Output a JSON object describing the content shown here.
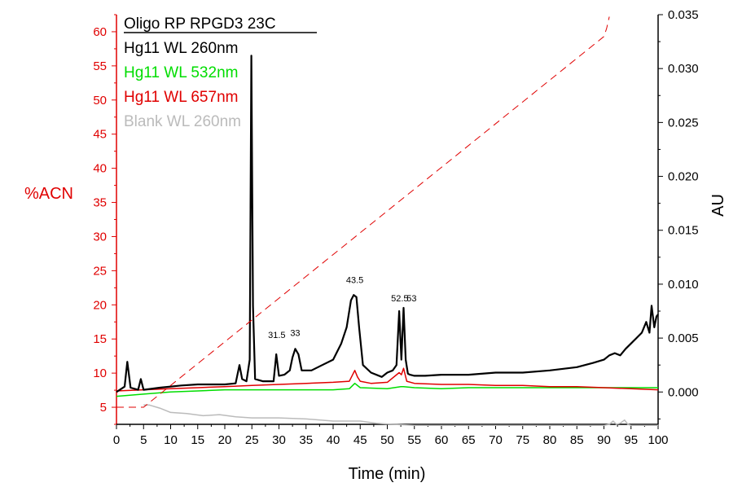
{
  "chart_data": {
    "type": "line",
    "xlabel": "Time (min)",
    "ylabel_left": "%ACN",
    "ylabel_right": "AU",
    "xlim": [
      0,
      100
    ],
    "ylim_left": [
      2.5,
      62.5
    ],
    "ylim_right": [
      -0.003,
      0.035
    ],
    "x_ticks": [
      "0",
      "5",
      "10",
      "15",
      "20",
      "25",
      "30",
      "35",
      "40",
      "45",
      "50",
      "55",
      "60",
      "65",
      "70",
      "75",
      "80",
      "85",
      "90",
      "95",
      "100"
    ],
    "left_ticks": [
      "5",
      "10",
      "15",
      "20",
      "25",
      "30",
      "35",
      "40",
      "45",
      "50",
      "55",
      "60"
    ],
    "right_ticks": [
      "0.000",
      "0.005",
      "0.010",
      "0.015",
      "0.020",
      "0.025",
      "0.030",
      "0.035"
    ],
    "legend": {
      "title": "Oligo RP RPGD3 23C",
      "entries": [
        {
          "label": "Hg11 WL 260nm",
          "color": "#000000"
        },
        {
          "label": "Hg11 WL 532nm",
          "color": "#00dd00"
        },
        {
          "label": "Hg11 WL 657nm",
          "color": "#e00000"
        },
        {
          "label": "Blank WL 260nm",
          "color": "#bbbbbb"
        }
      ]
    },
    "peak_labels": [
      {
        "text": "31.5",
        "x": 29.6,
        "y": 0.0047
      },
      {
        "text": "33",
        "x": 33.0,
        "y": 0.0049
      },
      {
        "text": "43.5",
        "x": 44.0,
        "y": 0.0098
      },
      {
        "text": "52.5",
        "x": 52.3,
        "y": 0.0081
      },
      {
        "text": "53",
        "x": 54.5,
        "y": 0.0081
      }
    ],
    "series": [
      {
        "name": "Hg11 WL 260nm",
        "axis": "right",
        "color": "#000000",
        "x": [
          0,
          1.5,
          2,
          2.6,
          4,
          4.5,
          5,
          8,
          12,
          15,
          18,
          20,
          22,
          22.7,
          23.2,
          24,
          24.6,
          24.9,
          25.2,
          25.6,
          27,
          29,
          29.5,
          30,
          31,
          32,
          32.5,
          33,
          33.6,
          34.2,
          36,
          38,
          40,
          41.5,
          42.5,
          43.3,
          43.8,
          44.3,
          44.8,
          45.5,
          47,
          49,
          50,
          51,
          51.7,
          52.2,
          52.6,
          53,
          53.4,
          53.8,
          54.2,
          55,
          57,
          60,
          65,
          70,
          75,
          80,
          85,
          88,
          90,
          91,
          92,
          93,
          94,
          95,
          96,
          97,
          97.8,
          98.4,
          98.8,
          99.3,
          99.7,
          100
        ],
        "y": [
          0.0,
          0.0005,
          0.0028,
          0.0004,
          0.0002,
          0.0012,
          0.0002,
          0.0004,
          0.0006,
          0.0007,
          0.0007,
          0.0007,
          0.0008,
          0.0025,
          0.0012,
          0.001,
          0.003,
          0.0312,
          0.008,
          0.0012,
          0.001,
          0.001,
          0.0035,
          0.0015,
          0.0016,
          0.002,
          0.0032,
          0.004,
          0.0035,
          0.002,
          0.002,
          0.0025,
          0.003,
          0.0045,
          0.006,
          0.0085,
          0.009,
          0.0088,
          0.006,
          0.0025,
          0.0018,
          0.0014,
          0.0018,
          0.002,
          0.0025,
          0.0075,
          0.003,
          0.0078,
          0.003,
          0.0017,
          0.0016,
          0.0015,
          0.0015,
          0.0016,
          0.0016,
          0.0018,
          0.0018,
          0.002,
          0.0023,
          0.0027,
          0.003,
          0.0034,
          0.0036,
          0.0034,
          0.004,
          0.0045,
          0.005,
          0.0055,
          0.0065,
          0.0055,
          0.008,
          0.006,
          0.007,
          0.0072
        ]
      },
      {
        "name": "Hg11 WL 532nm",
        "axis": "right",
        "color": "#00dd00",
        "x": [
          0,
          5,
          10,
          15,
          20,
          25,
          30,
          35,
          40,
          43,
          44,
          45,
          50,
          52.5,
          53,
          55,
          60,
          65,
          70,
          75,
          80,
          85,
          90,
          95,
          100
        ],
        "y": [
          -0.0004,
          -0.0002,
          0.0,
          0.0001,
          0.0002,
          0.0002,
          0.0002,
          0.0002,
          0.0002,
          0.0003,
          0.0008,
          0.0004,
          0.0003,
          0.0005,
          0.0005,
          0.0004,
          0.0003,
          0.0004,
          0.0004,
          0.0004,
          0.0004,
          0.0004,
          0.0004,
          0.0004,
          0.0004
        ]
      },
      {
        "name": "Hg11 WL 657nm",
        "axis": "right",
        "color": "#e00000",
        "x": [
          0,
          5,
          10,
          15,
          20,
          25,
          30,
          35,
          40,
          43,
          44,
          44.5,
          45,
          47,
          50,
          52.2,
          52.6,
          53,
          53.6,
          55,
          60,
          65,
          70,
          75,
          80,
          85,
          90,
          95,
          100
        ],
        "y": [
          0.0001,
          0.0002,
          0.0003,
          0.0004,
          0.0005,
          0.0006,
          0.0007,
          0.0008,
          0.0009,
          0.001,
          0.002,
          0.0014,
          0.001,
          0.0008,
          0.0009,
          0.0018,
          0.0016,
          0.0022,
          0.001,
          0.0008,
          0.0007,
          0.0007,
          0.0006,
          0.0006,
          0.0005,
          0.0005,
          0.0004,
          0.0003,
          0.0002
        ]
      },
      {
        "name": "Blank WL 260nm",
        "axis": "right",
        "color": "#bbbbbb",
        "x": [
          5,
          6,
          8,
          10,
          13,
          16,
          19,
          22,
          25,
          30,
          35,
          40,
          45,
          48,
          51,
          55,
          60,
          65,
          70,
          75,
          80,
          85,
          90,
          91,
          91.7,
          92.3,
          93,
          93.8,
          94.4,
          95,
          96,
          100
        ],
        "y": [
          -0.0012,
          -0.0012,
          -0.0015,
          -0.0019,
          -0.002,
          -0.0022,
          -0.0021,
          -0.0023,
          -0.0024,
          -0.0024,
          -0.0025,
          -0.0027,
          -0.0027,
          -0.0029,
          -0.003,
          -0.0031,
          -0.0031,
          -0.0031,
          -0.0031,
          -0.0031,
          -0.0031,
          -0.0031,
          -0.0031,
          -0.003,
          -0.0027,
          -0.003,
          -0.0029,
          -0.0026,
          -0.003,
          -0.0031,
          -0.0031,
          -0.0031
        ]
      },
      {
        "name": "%ACN gradient",
        "axis": "left",
        "color": "#e00000",
        "dashed": true,
        "x": [
          0,
          5,
          90,
          90.5,
          91
        ],
        "y": [
          5,
          5,
          59.3,
          60.5,
          62.2
        ]
      }
    ]
  }
}
